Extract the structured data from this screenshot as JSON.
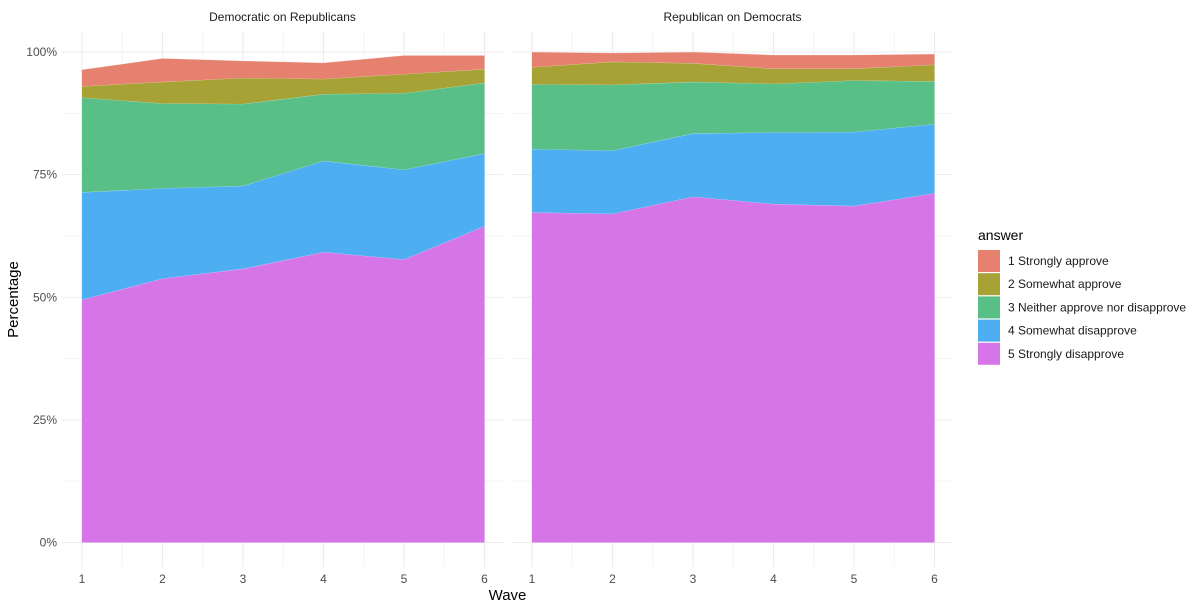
{
  "chart_data": {
    "type": "area",
    "stacked": true,
    "xlabel": "Wave",
    "ylabel": "Percentage",
    "ylim": [
      0,
      100
    ],
    "y_ticks": [
      "0%",
      "25%",
      "50%",
      "75%",
      "100%"
    ],
    "y_tick_values": [
      0,
      25,
      50,
      75,
      100
    ],
    "x_ticks": [
      "1",
      "2",
      "3",
      "4",
      "5",
      "6"
    ],
    "x_values": [
      1,
      2,
      3,
      4,
      5,
      6
    ],
    "legend": {
      "title": "answer",
      "position": "right",
      "entries": [
        {
          "label": "1 Strongly approve",
          "color": "#E7816F"
        },
        {
          "label": "2 Somewhat approve",
          "color": "#A6A235"
        },
        {
          "label": "3 Neither approve nor disapprove",
          "color": "#58BF87"
        },
        {
          "label": "4 Somewhat disapprove",
          "color": "#4DAFF2"
        },
        {
          "label": "5 Strongly disapprove",
          "color": "#D575E8"
        }
      ]
    },
    "panels": [
      {
        "title": "Democratic on Republicans",
        "series": [
          {
            "name": "5 Strongly disapprove",
            "values": [
              49.5,
              53.8,
              55.8,
              59.2,
              57.7,
              64.5
            ]
          },
          {
            "name": "4 Somewhat disapprove",
            "values": [
              21.9,
              18.4,
              16.9,
              18.6,
              18.3,
              14.8
            ]
          },
          {
            "name": "3 Neither approve nor disapprove",
            "values": [
              19.3,
              17.3,
              16.7,
              13.6,
              15.6,
              14.4
            ]
          },
          {
            "name": "2 Somewhat approve",
            "values": [
              2.3,
              4.4,
              5.3,
              3.1,
              3.9,
              2.8
            ]
          },
          {
            "name": "1 Strongly approve",
            "values": [
              3.4,
              4.8,
              3.5,
              3.3,
              3.8,
              2.8
            ]
          }
        ]
      },
      {
        "title": "Republican on Democrats",
        "series": [
          {
            "name": "5 Strongly disapprove",
            "values": [
              67.3,
              67.0,
              70.5,
              69.0,
              68.6,
              71.2
            ]
          },
          {
            "name": "4 Somewhat disapprove",
            "values": [
              12.9,
              12.9,
              12.9,
              14.6,
              15.1,
              14.1
            ]
          },
          {
            "name": "3 Neither approve nor disapprove",
            "values": [
              13.2,
              13.4,
              10.5,
              9.9,
              10.5,
              8.7
            ]
          },
          {
            "name": "2 Somewhat approve",
            "values": [
              3.5,
              4.7,
              3.8,
              3.1,
              2.4,
              3.4
            ]
          },
          {
            "name": "1 Strongly approve",
            "values": [
              3.1,
              1.8,
              2.3,
              2.8,
              2.8,
              2.2
            ]
          }
        ]
      }
    ]
  }
}
